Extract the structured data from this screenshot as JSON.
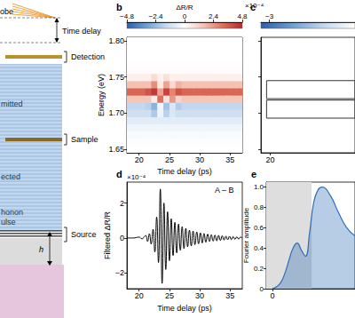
{
  "diagram": {
    "labels": [
      "obe",
      "Time delay",
      "Detection",
      "mitted",
      "Sample",
      "ected",
      "honon",
      "ulse",
      "Source",
      "h"
    ]
  },
  "chart_data": [
    {
      "type": "heatmap",
      "title": "b",
      "x_label": "Time delay (ps)",
      "y_label": "Energy (eV)",
      "x": [
        18.5,
        19.5,
        20.5,
        21.5,
        22.5,
        23.5,
        24.5,
        25.5,
        26.5,
        27.5,
        28.5,
        29.5,
        30.5,
        31.5,
        32.5,
        33.5,
        34.5,
        35.5,
        36.5
      ],
      "y": [
        1.65,
        1.66,
        1.67,
        1.68,
        1.69,
        1.7,
        1.71,
        1.72,
        1.73,
        1.74,
        1.75,
        1.76,
        1.77,
        1.78,
        1.79,
        1.8
      ],
      "z": [
        [
          0,
          0,
          0,
          0,
          0,
          0,
          0,
          0,
          0,
          0,
          0,
          0,
          0,
          0,
          0,
          0,
          0,
          0,
          0
        ],
        [
          -0.1,
          -0.1,
          -0.1,
          -0.1,
          -0.1,
          -0.1,
          -0.1,
          -0.1,
          -0.1,
          -0.1,
          -0.1,
          -0.1,
          -0.1,
          -0.1,
          -0.1,
          -0.1,
          -0.1,
          -0.1,
          -0.1
        ],
        [
          -0.2,
          -0.2,
          -0.2,
          -0.2,
          -0.2,
          -0.2,
          -0.2,
          -0.2,
          -0.2,
          -0.2,
          -0.2,
          -0.2,
          -0.2,
          -0.2,
          -0.2,
          -0.2,
          -0.2,
          -0.2,
          -0.2
        ],
        [
          -0.4,
          -0.4,
          -0.4,
          -0.4,
          -0.4,
          -0.4,
          -0.4,
          -0.4,
          -0.4,
          -0.4,
          -0.4,
          -0.4,
          -0.4,
          -0.4,
          -0.4,
          -0.4,
          -0.4,
          -0.4,
          -0.4
        ],
        [
          -0.8,
          -0.8,
          -0.8,
          -0.8,
          -0.8,
          -0.8,
          -0.8,
          -0.8,
          -0.8,
          -0.8,
          -0.8,
          -0.8,
          -0.8,
          -0.8,
          -0.8,
          -0.8,
          -0.8,
          -0.8,
          -0.8
        ],
        [
          -1.3,
          -1.3,
          -1.3,
          -1.3,
          -2.0,
          -0.5,
          -1.8,
          -1.0,
          -1.3,
          -1.3,
          -1.3,
          -1.3,
          -1.3,
          -1.3,
          -1.3,
          -1.3,
          -1.3,
          -1.3,
          -1.3
        ],
        [
          -1.6,
          -1.6,
          -1.6,
          -1.8,
          -2.6,
          -0.4,
          -2.2,
          -1.0,
          -1.9,
          -1.6,
          -1.6,
          -1.6,
          -1.6,
          -1.6,
          -1.6,
          -1.6,
          -1.6,
          -1.6,
          -1.6
        ],
        [
          1.5,
          1.5,
          1.5,
          1.5,
          0.5,
          3.2,
          0.8,
          2.4,
          1.1,
          1.5,
          1.5,
          1.5,
          1.5,
          1.5,
          1.5,
          1.5,
          1.5,
          1.5,
          1.5
        ],
        [
          3.4,
          3.4,
          3.4,
          3.8,
          4.4,
          2.2,
          4.2,
          2.8,
          3.8,
          3.4,
          3.4,
          3.4,
          3.4,
          3.4,
          3.4,
          3.4,
          3.4,
          3.4,
          3.4
        ],
        [
          1.6,
          1.6,
          1.6,
          1.6,
          2.6,
          0.6,
          2.2,
          1.0,
          1.9,
          1.6,
          1.6,
          1.6,
          1.6,
          1.6,
          1.6,
          1.6,
          1.6,
          1.6,
          1.6
        ],
        [
          0.4,
          0.4,
          0.4,
          0.4,
          0.9,
          0.4,
          0.8,
          0.4,
          0.4,
          0.4,
          0.4,
          0.4,
          0.4,
          0.4,
          0.4,
          0.4,
          0.4,
          0.4,
          0.4
        ],
        [
          0.1,
          0.1,
          0.1,
          0.1,
          0.1,
          0.1,
          0.1,
          0.1,
          0.1,
          0.1,
          0.1,
          0.1,
          0.1,
          0.1,
          0.1,
          0.1,
          0.1,
          0.1,
          0.1
        ],
        [
          0,
          0,
          0,
          0,
          0,
          0,
          0,
          0,
          0,
          0,
          0,
          0,
          0,
          0,
          0,
          0,
          0,
          0,
          0
        ],
        [
          0,
          0,
          0,
          0,
          0,
          0,
          0,
          0,
          0,
          0,
          0,
          0,
          0,
          0,
          0,
          0,
          0,
          0,
          0
        ],
        [
          0,
          0,
          0,
          0,
          0,
          0,
          0,
          0,
          0,
          0,
          0,
          0,
          0,
          0,
          0,
          0,
          0,
          0,
          0
        ],
        [
          0,
          0,
          0,
          0,
          0,
          0,
          0,
          0,
          0,
          0,
          0,
          0,
          0,
          0,
          0,
          0,
          0,
          0,
          0
        ]
      ],
      "xlim": [
        18,
        37
      ],
      "xticks": [
        20,
        25,
        30,
        35
      ],
      "ylim": [
        1.645,
        1.805
      ],
      "yticks": [
        1.65,
        {
          "value": 1.7,
          "label": "1.70"
        },
        1.75,
        {
          "value": 1.8,
          "label": "1.80"
        }
      ],
      "colorbar": {
        "label": "ΔR/R",
        "unit": "×10⁻⁴",
        "range": [
          -4.8,
          4.8
        ],
        "ticks": [
          {
            "value": -4.8,
            "label": "−4.8"
          },
          {
            "value": -2.4,
            "label": "−2.4"
          },
          0,
          2.4,
          4.8
        ]
      }
    },
    {
      "type": "heatmap",
      "title": "c",
      "xlim": [
        19.5,
        24.5
      ],
      "xticks": [
        20
      ],
      "ylim": [
        1.645,
        1.805
      ],
      "yticks": [
        1.65,
        1.7,
        1.75,
        1.8
      ],
      "tick_labels": "x",
      "boxes": [
        {
          "x": [
            19.8,
            24.5
          ],
          "y": [
            1.72,
            1.745
          ]
        },
        {
          "x": [
            19.8,
            24.5
          ],
          "y": [
            1.693,
            1.718
          ]
        }
      ],
      "colorbar": {
        "range": [
          -3.3,
          0
        ],
        "ticks": [
          {
            "value": -3,
            "label": "−3"
          }
        ]
      }
    },
    {
      "type": "line",
      "title": "d",
      "x_label": "Time delay (ps)",
      "y_label": "Filtered ΔR/R",
      "unit": "×10⁻⁴",
      "annotation": "A – B",
      "color": "#000000",
      "x": [
        18,
        19,
        20,
        20.5,
        20.8,
        21.1,
        21.4,
        21.7,
        22.0,
        22.3,
        22.6,
        22.9,
        23.2,
        23.5,
        23.8,
        24.1,
        24.4,
        24.7,
        25.0,
        25.3,
        25.6,
        25.9,
        26.2,
        26.5,
        26.8,
        27.1,
        27.4,
        27.7,
        28.0,
        28.3,
        28.6,
        28.9,
        29.2,
        29.5,
        29.8,
        30.1,
        30.4,
        30.7,
        31.0,
        31.3,
        31.6,
        31.9,
        32.2,
        32.5,
        32.8,
        33.1,
        33.4,
        33.7,
        34.0,
        34.3,
        34.6,
        34.9,
        35.2,
        35.5,
        35.8,
        36.1,
        36.4,
        36.7,
        37
      ],
      "values": [
        0,
        0,
        0.05,
        -0.05,
        0.05,
        0.15,
        -0.2,
        0.25,
        -0.35,
        0.5,
        -0.8,
        1.2,
        -1.4,
        2.8,
        -2.6,
        2.0,
        -1.8,
        1.5,
        -1.3,
        1.1,
        -1.0,
        0.9,
        -0.85,
        0.8,
        -0.7,
        0.65,
        -0.6,
        0.55,
        -0.5,
        0.45,
        -0.45,
        0.4,
        -0.38,
        0.35,
        -0.33,
        0.3,
        -0.28,
        0.26,
        -0.24,
        0.22,
        -0.2,
        0.19,
        -0.18,
        0.17,
        -0.16,
        0.15,
        -0.14,
        0.13,
        -0.12,
        0.11,
        -0.1,
        0.1,
        -0.09,
        0.08,
        -0.07,
        0.07,
        -0.06,
        0.05,
        0
      ],
      "xlim": [
        18,
        37
      ],
      "xticks": [
        20,
        25,
        30,
        35
      ],
      "ylim": [
        -2.9,
        3.2
      ],
      "yticks": [
        {
          "value": -2,
          "label": "−2"
        },
        0,
        2
      ]
    },
    {
      "type": "area",
      "title": "e",
      "y_label": "Fourier amplitude",
      "color": "#2f6fb5",
      "x": [
        0,
        0.1,
        0.2,
        0.3,
        0.4,
        0.5,
        0.6,
        0.7,
        0.8,
        0.9,
        1.0,
        1.1,
        1.2,
        1.4,
        1.6,
        1.8,
        2.0
      ],
      "values": [
        0,
        0.02,
        0.06,
        0.15,
        0.28,
        0.4,
        0.45,
        0.38,
        0.32,
        0.55,
        0.85,
        0.97,
        1.0,
        0.92,
        0.75,
        0.6,
        0.52
      ],
      "shaded_ranges": [
        [
          -0.15,
          0.95
        ]
      ],
      "xlim": [
        -0.15,
        2
      ],
      "xticks": [
        0
      ],
      "ylim": [
        0,
        1.05
      ],
      "yticks": [
        0,
        0.2,
        0.4,
        0.6,
        0.8,
        {
          "value": 1,
          "label": "1.0"
        }
      ]
    }
  ]
}
